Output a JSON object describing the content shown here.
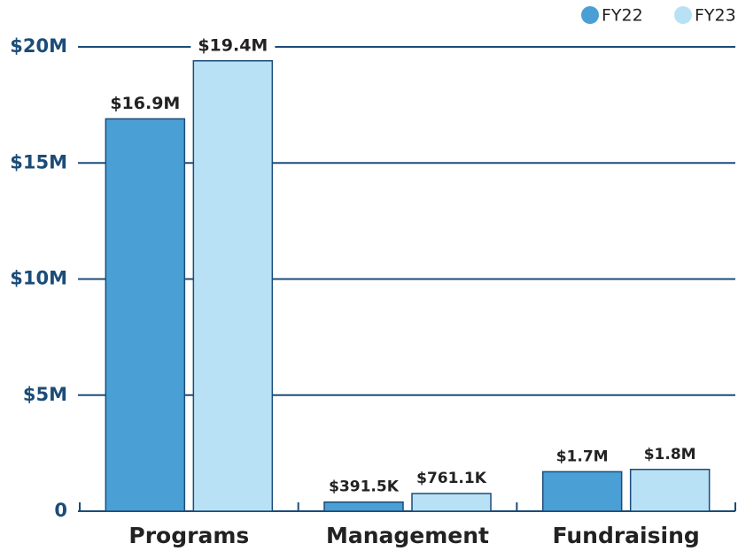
{
  "chart_data": {
    "type": "bar",
    "categories": [
      "Programs",
      "Management",
      "Fundraising"
    ],
    "series": [
      {
        "name": "FY22",
        "color": "#4a9fd4",
        "values": [
          16900000,
          391500,
          1700000
        ],
        "value_labels": [
          "$16.9M",
          "$391.5K",
          "$1.7M"
        ]
      },
      {
        "name": "FY23",
        "color": "#b9e1f5",
        "values": [
          19400000,
          761100,
          1800000
        ],
        "value_labels": [
          "$19.4M",
          "$761.1K",
          "$1.8M"
        ]
      }
    ],
    "ylim": [
      0,
      20000000
    ],
    "yticks": [
      0,
      {
        "value": 5000000,
        "label": "$5M"
      },
      {
        "value": 10000000,
        "label": "$10M"
      },
      {
        "value": 15000000,
        "label": "$15M"
      },
      {
        "value": 20000000,
        "label": "$20M"
      }
    ],
    "grid": true,
    "legend": "top-right"
  }
}
